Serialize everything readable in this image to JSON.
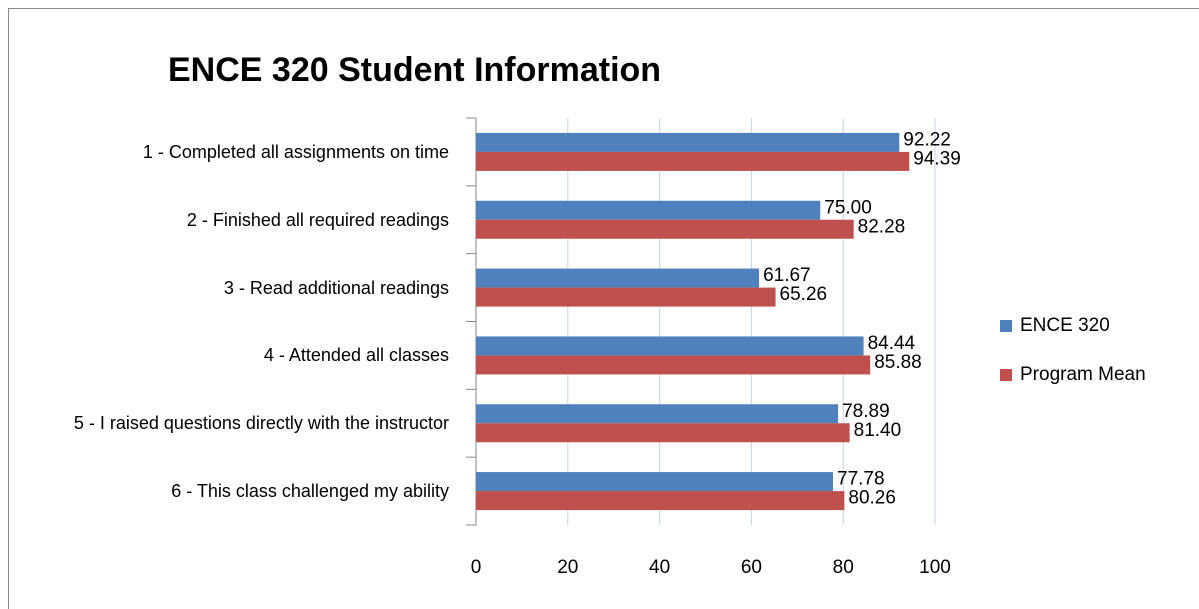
{
  "chart_data": {
    "type": "bar",
    "orientation": "horizontal",
    "title": "ENCE 320 Student Information",
    "categories": [
      "1 - Completed all assignments on time",
      "2 - Finished all required readings",
      "3 - Read additional readings",
      "4 - Attended all classes",
      "5 - I raised questions directly with the instructor",
      "6 - This class challenged my ability"
    ],
    "series": [
      {
        "name": "ENCE 320",
        "color": "#4f81bd",
        "values": [
          92.22,
          75,
          61.67,
          84.44,
          78.89,
          77.78
        ],
        "value_labels": [
          "92.22",
          "75.00",
          "61.67",
          "84.44",
          "78.89",
          "77.78"
        ]
      },
      {
        "name": "Program Mean",
        "color": "#c0504d",
        "values": [
          94.39,
          82.28,
          65.26,
          85.88,
          81.4,
          80.26
        ],
        "value_labels": [
          "94.39",
          "82.28",
          "65.26",
          "85.88",
          "81.40",
          "80.26"
        ]
      }
    ],
    "xlim": [
      0,
      100
    ],
    "xticks": [
      0,
      20,
      40,
      60,
      80,
      100
    ],
    "grid": true,
    "legend": "right"
  }
}
